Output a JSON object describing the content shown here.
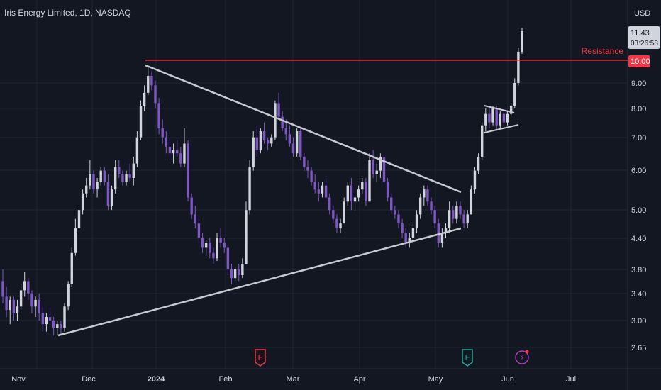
{
  "header": {
    "title": "Iris Energy Limited, 1D, NASDAQ",
    "currency": "USD"
  },
  "price_badge": {
    "price": "11.43",
    "countdown": "03:26:58"
  },
  "resistance": {
    "label": "Resistance",
    "value_label": "10.00",
    "color": "#f23645"
  },
  "colors": {
    "background": "#131722",
    "grid": "#222631",
    "up": "#d1d4dc",
    "down": "#7e57c2",
    "trendline": "#c9c9d1",
    "text": "#d1d4dc"
  },
  "events": [
    {
      "type": "earnings",
      "glyph": "E",
      "color": "#f23645"
    },
    {
      "type": "earnings",
      "glyph": "E",
      "color": "#26a69a"
    },
    {
      "type": "dividend-split",
      "glyph": "⚡",
      "color": "#b23fbf"
    }
  ],
  "chart_data": {
    "type": "candlestick",
    "title": "Iris Energy Limited, 1D, NASDAQ",
    "y_scale": "log",
    "ylim": [
      2.5,
      13
    ],
    "y_ticks": [
      "9.00",
      "8.00",
      "7.00",
      "6.00",
      "5.00",
      "4.40",
      "3.80",
      "3.40",
      "3.00",
      "2.65"
    ],
    "x_ticks": [
      "Nov",
      "Dec",
      "2024",
      "Feb",
      "Mar",
      "Apr",
      "May",
      "Jun",
      "Jul"
    ],
    "annotations": [
      {
        "type": "horizontal_line",
        "label": "Resistance",
        "value": 10.0
      },
      {
        "type": "trendline",
        "name": "descending",
        "from": {
          "x": "2023-12-27",
          "y": 9.7
        },
        "to": {
          "x": "2024-05-10",
          "y": 5.5
        }
      },
      {
        "type": "trendline",
        "name": "ascending",
        "from": {
          "x": "2023-11-16",
          "y": 2.8
        },
        "to": {
          "x": "2024-05-10",
          "y": 4.6
        }
      }
    ],
    "series": [
      {
        "ohlc": [
          [
            3.6,
            3.8,
            3.25,
            3.35
          ],
          [
            3.35,
            3.5,
            3.05,
            3.15
          ],
          [
            3.15,
            3.35,
            2.95,
            3.3
          ],
          [
            3.3,
            3.35,
            3.0,
            3.1
          ],
          [
            3.1,
            3.3,
            3.0,
            3.2
          ],
          [
            3.2,
            3.55,
            3.15,
            3.45
          ],
          [
            3.45,
            3.75,
            3.35,
            3.6
          ],
          [
            3.6,
            3.65,
            3.3,
            3.4
          ],
          [
            3.4,
            3.45,
            3.1,
            3.2
          ],
          [
            3.2,
            3.35,
            3.05,
            3.3
          ],
          [
            3.3,
            3.4,
            3.0,
            3.1
          ],
          [
            3.1,
            3.2,
            2.85,
            2.95
          ],
          [
            2.95,
            3.1,
            2.85,
            3.05
          ],
          [
            3.05,
            3.2,
            2.95,
            3.0
          ],
          [
            3.0,
            3.05,
            2.8,
            2.9
          ],
          [
            2.9,
            3.0,
            2.8,
            2.95
          ],
          [
            2.95,
            3.0,
            2.8,
            2.9
          ],
          [
            2.9,
            3.25,
            2.85,
            3.2
          ],
          [
            3.2,
            3.6,
            3.15,
            3.55
          ],
          [
            3.55,
            4.2,
            3.5,
            4.1
          ],
          [
            4.1,
            4.8,
            4.05,
            4.6
          ],
          [
            4.6,
            5.1,
            4.5,
            5.0
          ],
          [
            5.0,
            5.5,
            4.9,
            5.4
          ],
          [
            5.4,
            5.8,
            5.3,
            5.6
          ],
          [
            5.6,
            6.3,
            5.5,
            5.9
          ],
          [
            5.9,
            6.0,
            5.4,
            5.5
          ],
          [
            5.5,
            5.8,
            5.3,
            5.7
          ],
          [
            5.7,
            6.1,
            5.6,
            6.0
          ],
          [
            6.0,
            6.1,
            5.6,
            5.7
          ],
          [
            5.7,
            5.9,
            5.0,
            5.1
          ],
          [
            5.1,
            5.6,
            5.0,
            5.5
          ],
          [
            5.5,
            6.3,
            5.4,
            6.1
          ],
          [
            6.1,
            6.3,
            5.8,
            5.9
          ],
          [
            5.9,
            6.0,
            5.6,
            5.7
          ],
          [
            5.7,
            6.0,
            5.6,
            5.9
          ],
          [
            5.9,
            6.2,
            5.7,
            5.8
          ],
          [
            5.8,
            6.4,
            5.6,
            6.2
          ],
          [
            6.2,
            7.2,
            6.1,
            7.0
          ],
          [
            7.0,
            8.3,
            6.9,
            8.1
          ],
          [
            8.1,
            8.9,
            7.9,
            8.6
          ],
          [
            8.6,
            9.7,
            8.5,
            9.3
          ],
          [
            9.3,
            9.5,
            8.7,
            8.9
          ],
          [
            8.9,
            9.1,
            8.0,
            8.2
          ],
          [
            8.2,
            8.4,
            7.1,
            7.3
          ],
          [
            7.3,
            7.6,
            6.8,
            7.0
          ],
          [
            7.0,
            7.2,
            6.5,
            6.7
          ],
          [
            6.7,
            7.0,
            6.3,
            6.5
          ],
          [
            6.5,
            6.8,
            6.2,
            6.6
          ],
          [
            6.6,
            6.9,
            6.4,
            6.5
          ],
          [
            6.5,
            6.7,
            6.1,
            6.2
          ],
          [
            6.2,
            7.3,
            6.1,
            6.8
          ],
          [
            6.8,
            6.9,
            5.2,
            5.3
          ],
          [
            5.3,
            5.4,
            4.8,
            4.9
          ],
          [
            4.9,
            5.1,
            4.6,
            4.7
          ],
          [
            4.7,
            4.8,
            4.3,
            4.4
          ],
          [
            4.4,
            4.5,
            4.1,
            4.2
          ],
          [
            4.2,
            4.35,
            4.05,
            4.3
          ],
          [
            4.3,
            4.4,
            4.0,
            4.1
          ],
          [
            4.1,
            4.2,
            3.9,
            4.0
          ],
          [
            4.0,
            4.5,
            3.95,
            4.4
          ],
          [
            4.4,
            4.6,
            4.2,
            4.3
          ],
          [
            4.3,
            4.4,
            4.1,
            4.2
          ],
          [
            4.2,
            4.25,
            3.7,
            3.8
          ],
          [
            3.8,
            3.9,
            3.55,
            3.65
          ],
          [
            3.65,
            3.85,
            3.6,
            3.8
          ],
          [
            3.8,
            3.9,
            3.6,
            3.7
          ],
          [
            3.7,
            4.0,
            3.65,
            3.9
          ],
          [
            3.9,
            5.2,
            3.9,
            5.0
          ],
          [
            5.0,
            6.3,
            4.9,
            6.1
          ],
          [
            6.1,
            7.2,
            6.0,
            7.0
          ],
          [
            7.0,
            7.4,
            6.4,
            6.6
          ],
          [
            6.6,
            7.3,
            6.5,
            7.2
          ],
          [
            7.2,
            7.5,
            6.8,
            6.9
          ],
          [
            6.9,
            7.0,
            6.6,
            6.8
          ],
          [
            6.8,
            7.1,
            6.7,
            7.0
          ],
          [
            7.0,
            8.3,
            6.9,
            8.2
          ],
          [
            8.2,
            8.6,
            7.6,
            7.7
          ],
          [
            7.7,
            7.9,
            7.2,
            7.3
          ],
          [
            7.3,
            7.6,
            6.9,
            7.1
          ],
          [
            7.1,
            7.4,
            6.7,
            6.8
          ],
          [
            6.8,
            7.0,
            6.4,
            6.5
          ],
          [
            6.5,
            7.3,
            6.4,
            7.2
          ],
          [
            7.2,
            7.3,
            6.3,
            6.4
          ],
          [
            6.4,
            6.5,
            6.0,
            6.1
          ],
          [
            6.1,
            6.3,
            5.8,
            6.0
          ],
          [
            6.0,
            6.1,
            5.6,
            5.7
          ],
          [
            5.7,
            5.9,
            5.4,
            5.5
          ],
          [
            5.5,
            5.7,
            5.2,
            5.4
          ],
          [
            5.4,
            5.7,
            5.3,
            5.6
          ],
          [
            5.6,
            5.8,
            5.2,
            5.3
          ],
          [
            5.3,
            5.4,
            4.9,
            5.0
          ],
          [
            5.0,
            5.1,
            4.7,
            4.8
          ],
          [
            4.8,
            4.9,
            4.5,
            4.6
          ],
          [
            4.6,
            4.8,
            4.5,
            4.7
          ],
          [
            4.7,
            5.3,
            4.7,
            5.2
          ],
          [
            5.2,
            5.7,
            5.1,
            5.6
          ],
          [
            5.6,
            5.8,
            5.0,
            5.2
          ],
          [
            5.2,
            5.4,
            5.0,
            5.3
          ],
          [
            5.3,
            5.6,
            5.2,
            5.5
          ],
          [
            5.5,
            5.8,
            5.4,
            5.7
          ],
          [
            5.7,
            5.8,
            5.1,
            5.2
          ],
          [
            5.2,
            6.5,
            5.2,
            6.3
          ],
          [
            6.3,
            6.6,
            5.8,
            5.9
          ],
          [
            5.9,
            6.2,
            5.7,
            6.0
          ],
          [
            6.0,
            6.5,
            5.8,
            6.4
          ],
          [
            6.4,
            6.5,
            5.6,
            5.7
          ],
          [
            5.7,
            5.8,
            5.2,
            5.3
          ],
          [
            5.3,
            5.4,
            4.9,
            5.0
          ],
          [
            5.0,
            5.1,
            4.8,
            4.9
          ],
          [
            4.9,
            5.0,
            4.6,
            4.7
          ],
          [
            4.7,
            4.8,
            4.4,
            4.5
          ],
          [
            4.5,
            4.6,
            4.2,
            4.3
          ],
          [
            4.3,
            4.5,
            4.2,
            4.4
          ],
          [
            4.4,
            4.7,
            4.3,
            4.6
          ],
          [
            4.6,
            5.0,
            4.5,
            4.9
          ],
          [
            4.9,
            5.4,
            4.8,
            5.3
          ],
          [
            5.3,
            5.6,
            5.1,
            5.5
          ],
          [
            5.5,
            5.6,
            5.1,
            5.2
          ],
          [
            5.2,
            5.3,
            4.9,
            5.0
          ],
          [
            5.0,
            5.1,
            4.6,
            4.7
          ],
          [
            4.7,
            4.8,
            4.2,
            4.3
          ],
          [
            4.3,
            4.6,
            4.2,
            4.5
          ],
          [
            4.5,
            4.7,
            4.4,
            4.6
          ],
          [
            4.6,
            5.2,
            4.5,
            5.0
          ],
          [
            5.0,
            5.1,
            4.7,
            4.8
          ],
          [
            4.8,
            5.2,
            4.7,
            5.1
          ],
          [
            5.1,
            5.2,
            4.8,
            4.9
          ],
          [
            4.9,
            5.0,
            4.6,
            4.7
          ],
          [
            4.7,
            5.0,
            4.6,
            4.9
          ],
          [
            4.9,
            5.6,
            4.9,
            5.5
          ],
          [
            5.5,
            6.1,
            5.4,
            6.0
          ],
          [
            6.0,
            6.5,
            5.9,
            6.4
          ],
          [
            6.4,
            7.5,
            6.3,
            7.4
          ],
          [
            7.4,
            8.0,
            7.2,
            7.8
          ],
          [
            7.8,
            8.1,
            7.3,
            7.5
          ],
          [
            7.5,
            8.1,
            7.4,
            8.0
          ],
          [
            8.0,
            8.1,
            7.2,
            7.4
          ],
          [
            7.4,
            7.9,
            7.3,
            7.8
          ],
          [
            7.8,
            7.9,
            7.4,
            7.5
          ],
          [
            7.5,
            7.9,
            7.4,
            7.8
          ],
          [
            7.8,
            8.2,
            7.7,
            8.1
          ],
          [
            8.1,
            9.2,
            8.0,
            9.0
          ],
          [
            9.0,
            10.6,
            8.9,
            10.4
          ],
          [
            10.4,
            11.6,
            10.3,
            11.43
          ]
        ]
      }
    ]
  }
}
